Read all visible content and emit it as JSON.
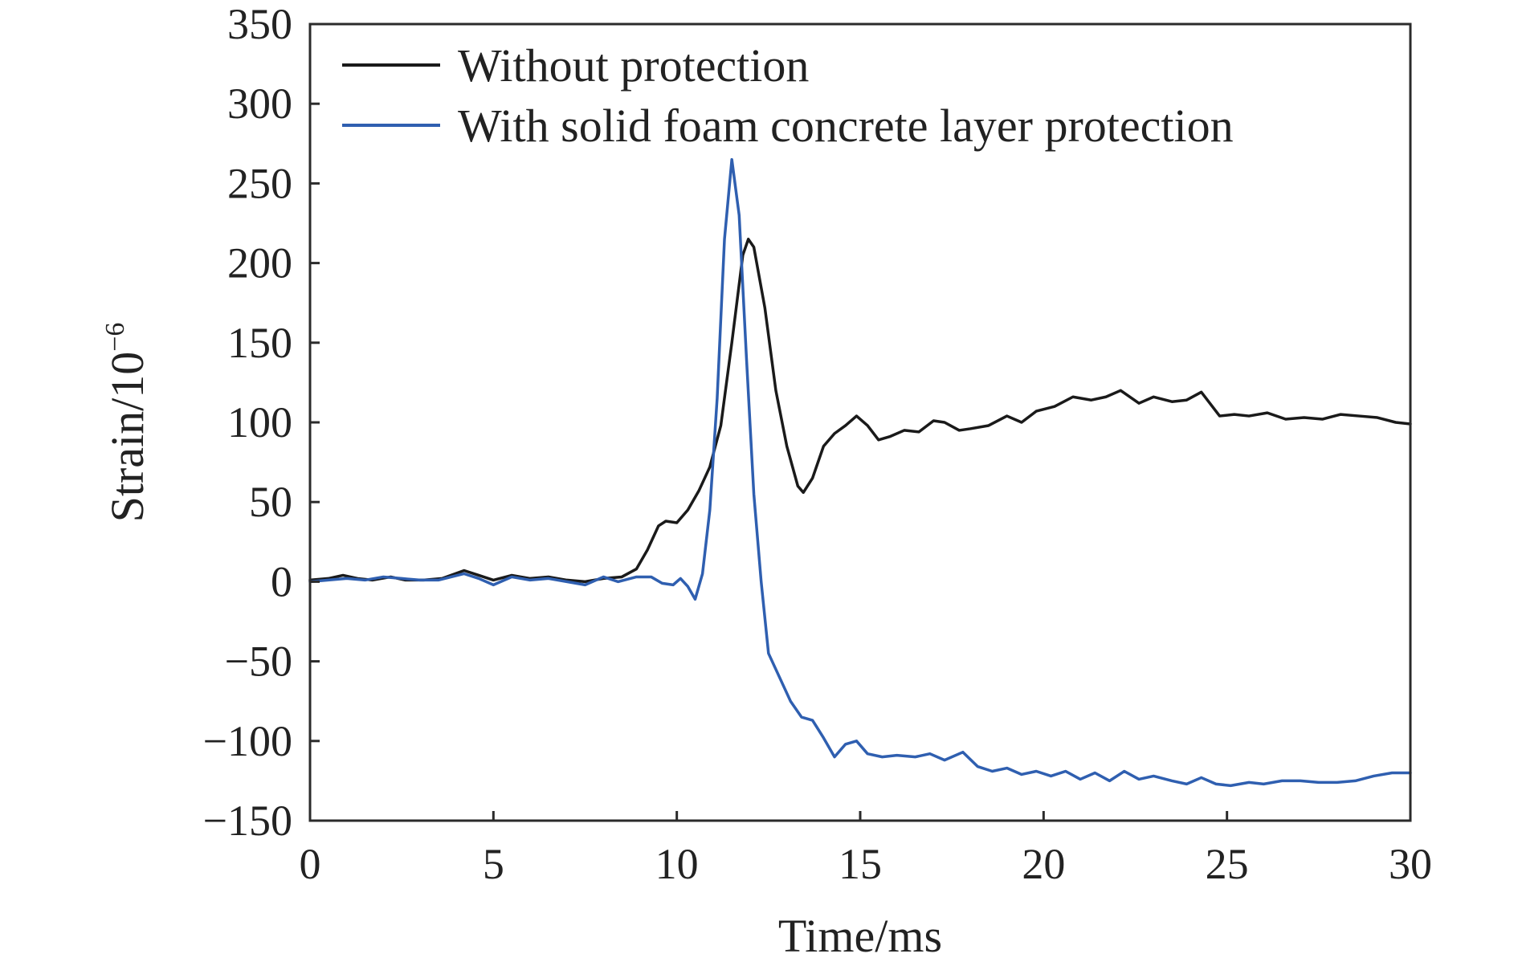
{
  "chart_data": {
    "type": "line",
    "title": "",
    "xlabel": "Time/ms",
    "ylabel": {
      "base": "Strain/10",
      "exponent": "−6"
    },
    "xlim": [
      0,
      30
    ],
    "ylim": [
      -150,
      350
    ],
    "xticks": [
      0,
      5,
      10,
      15,
      20,
      25,
      30
    ],
    "yticks": [
      350,
      300,
      250,
      200,
      150,
      100,
      50,
      0,
      -50,
      -100,
      -150
    ],
    "xtick_labels": [
      "0",
      "5",
      "10",
      "15",
      "20",
      "25",
      "30"
    ],
    "ytick_labels": [
      "350",
      "300",
      "250",
      "200",
      "150",
      "100",
      "50",
      "0",
      "−50",
      "−100",
      "−150"
    ],
    "grid": false,
    "legend_position": "top-left",
    "series": [
      {
        "name": "Without protection",
        "color": "#1a1a1a",
        "points": [
          [
            0,
            1
          ],
          [
            0.5,
            2
          ],
          [
            0.9,
            4
          ],
          [
            1.3,
            2
          ],
          [
            1.7,
            1
          ],
          [
            2.2,
            3
          ],
          [
            2.6,
            1
          ],
          [
            3.1,
            1
          ],
          [
            3.6,
            2
          ],
          [
            4.2,
            7
          ],
          [
            4.6,
            4
          ],
          [
            5.0,
            1
          ],
          [
            5.5,
            4
          ],
          [
            6.0,
            2
          ],
          [
            6.5,
            3
          ],
          [
            7.0,
            1
          ],
          [
            7.5,
            0
          ],
          [
            8.0,
            2
          ],
          [
            8.5,
            3
          ],
          [
            8.9,
            8
          ],
          [
            9.2,
            20
          ],
          [
            9.5,
            35
          ],
          [
            9.7,
            38
          ],
          [
            10.0,
            37
          ],
          [
            10.3,
            45
          ],
          [
            10.6,
            57
          ],
          [
            10.9,
            72
          ],
          [
            11.2,
            98
          ],
          [
            11.5,
            150
          ],
          [
            11.8,
            205
          ],
          [
            11.95,
            215
          ],
          [
            12.1,
            210
          ],
          [
            12.4,
            172
          ],
          [
            12.7,
            120
          ],
          [
            13.0,
            85
          ],
          [
            13.3,
            60
          ],
          [
            13.45,
            56
          ],
          [
            13.7,
            65
          ],
          [
            14.0,
            85
          ],
          [
            14.3,
            93
          ],
          [
            14.6,
            98
          ],
          [
            14.9,
            104
          ],
          [
            15.2,
            98
          ],
          [
            15.5,
            89
          ],
          [
            15.8,
            91
          ],
          [
            16.2,
            95
          ],
          [
            16.6,
            94
          ],
          [
            17.0,
            101
          ],
          [
            17.3,
            100
          ],
          [
            17.7,
            95
          ],
          [
            18.0,
            96
          ],
          [
            18.5,
            98
          ],
          [
            19.0,
            104
          ],
          [
            19.4,
            100
          ],
          [
            19.8,
            107
          ],
          [
            20.3,
            110
          ],
          [
            20.8,
            116
          ],
          [
            21.3,
            114
          ],
          [
            21.7,
            116
          ],
          [
            22.1,
            120
          ],
          [
            22.6,
            112
          ],
          [
            23.0,
            116
          ],
          [
            23.5,
            113
          ],
          [
            23.9,
            114
          ],
          [
            24.3,
            119
          ],
          [
            24.8,
            104
          ],
          [
            25.2,
            105
          ],
          [
            25.6,
            104
          ],
          [
            26.1,
            106
          ],
          [
            26.6,
            102
          ],
          [
            27.1,
            103
          ],
          [
            27.6,
            102
          ],
          [
            28.1,
            105
          ],
          [
            28.6,
            104
          ],
          [
            29.1,
            103
          ],
          [
            29.6,
            100
          ],
          [
            30.0,
            99
          ]
        ]
      },
      {
        "name": "With solid foam concrete layer protection",
        "color": "#2f5fb0",
        "points": [
          [
            0,
            0
          ],
          [
            0.5,
            1
          ],
          [
            1.0,
            2
          ],
          [
            1.5,
            1
          ],
          [
            2.0,
            3
          ],
          [
            2.5,
            2
          ],
          [
            3.0,
            1
          ],
          [
            3.5,
            1
          ],
          [
            4.2,
            5
          ],
          [
            4.6,
            2
          ],
          [
            5.0,
            -2
          ],
          [
            5.5,
            3
          ],
          [
            6.0,
            1
          ],
          [
            6.5,
            2
          ],
          [
            7.0,
            0
          ],
          [
            7.5,
            -2
          ],
          [
            8.0,
            3
          ],
          [
            8.4,
            0
          ],
          [
            8.9,
            3
          ],
          [
            9.3,
            3
          ],
          [
            9.6,
            -1
          ],
          [
            9.9,
            -2
          ],
          [
            10.1,
            2
          ],
          [
            10.3,
            -3
          ],
          [
            10.5,
            -11
          ],
          [
            10.7,
            5
          ],
          [
            10.9,
            45
          ],
          [
            11.1,
            115
          ],
          [
            11.3,
            215
          ],
          [
            11.5,
            265
          ],
          [
            11.7,
            230
          ],
          [
            11.9,
            140
          ],
          [
            12.1,
            55
          ],
          [
            12.3,
            0
          ],
          [
            12.5,
            -45
          ],
          [
            12.8,
            -60
          ],
          [
            13.1,
            -75
          ],
          [
            13.4,
            -85
          ],
          [
            13.7,
            -87
          ],
          [
            14.0,
            -98
          ],
          [
            14.3,
            -110
          ],
          [
            14.6,
            -102
          ],
          [
            14.9,
            -100
          ],
          [
            15.2,
            -108
          ],
          [
            15.6,
            -110
          ],
          [
            16.0,
            -109
          ],
          [
            16.5,
            -110
          ],
          [
            16.9,
            -108
          ],
          [
            17.3,
            -112
          ],
          [
            17.8,
            -107
          ],
          [
            18.2,
            -116
          ],
          [
            18.6,
            -119
          ],
          [
            19.0,
            -117
          ],
          [
            19.4,
            -121
          ],
          [
            19.8,
            -119
          ],
          [
            20.2,
            -122
          ],
          [
            20.6,
            -119
          ],
          [
            21.0,
            -124
          ],
          [
            21.4,
            -120
          ],
          [
            21.8,
            -125
          ],
          [
            22.2,
            -119
          ],
          [
            22.6,
            -124
          ],
          [
            23.0,
            -122
          ],
          [
            23.5,
            -125
          ],
          [
            23.9,
            -127
          ],
          [
            24.3,
            -123
          ],
          [
            24.7,
            -127
          ],
          [
            25.1,
            -128
          ],
          [
            25.6,
            -126
          ],
          [
            26.0,
            -127
          ],
          [
            26.5,
            -125
          ],
          [
            27.0,
            -125
          ],
          [
            27.5,
            -126
          ],
          [
            28.0,
            -126
          ],
          [
            28.5,
            -125
          ],
          [
            29.0,
            -122
          ],
          [
            29.5,
            -120
          ],
          [
            30.0,
            -120
          ]
        ]
      }
    ]
  }
}
